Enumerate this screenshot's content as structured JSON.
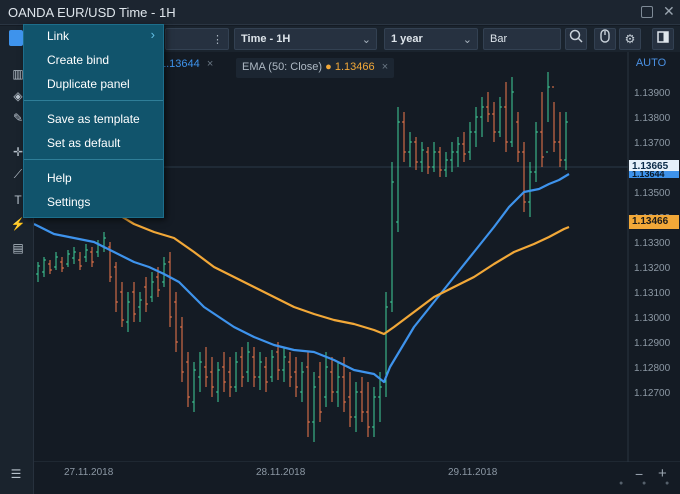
{
  "window": {
    "title": "OANDA EUR/USD Time - 1H",
    "restore_icon": "restore-icon",
    "close_icon": "close-icon"
  },
  "toolbar": {
    "interval": "Time - 1H",
    "range": "1 year",
    "chart_type": "Bar",
    "more_icon": "vertical-dots-icon",
    "chevron_icon": "chevron-down-icon",
    "icons": [
      "magnifier-icon",
      "mouse-icon",
      "gear-icon",
      "panel-toggle-icon"
    ]
  },
  "legend": {
    "indicator_partial": "1.13644",
    "close_x": "×",
    "ema_label": "EMA (50: Close)",
    "ema_dot": "●",
    "ema_value": "1.13466",
    "ema_close": "×"
  },
  "price_axis": {
    "auto_label": "AUTO",
    "ticks": [
      "1.13900",
      "1.13800",
      "1.13700",
      "1.13600",
      "1.13500",
      "1.13400",
      "1.13300",
      "1.13200",
      "1.13100",
      "1.13000",
      "1.12900",
      "1.12800",
      "1.12700"
    ],
    "current_price": "1.13665",
    "hidden_price": "1.13644",
    "ema_price": "1.13466"
  },
  "time_axis": {
    "dates": [
      "27.11.2018",
      "28.11.2018",
      "29.11.2018"
    ]
  },
  "menu": {
    "items": [
      {
        "label": "Link",
        "has_submenu": true
      },
      {
        "label": "Create bind"
      },
      {
        "label": "Duplicate panel"
      },
      {
        "label": "Save as template"
      },
      {
        "label": "Set as default"
      },
      {
        "label": "Help"
      },
      {
        "label": "Settings"
      }
    ],
    "submenu_arrow": "›"
  },
  "bottom": {
    "list_icon": "list-icon",
    "zoom_out": "−",
    "zoom_in": "+"
  },
  "colors": {
    "bull": "#3fcf9a",
    "bear": "#f2784b",
    "sma": "#3e93ec",
    "ema": "#f2a838",
    "menu_bg": "#11546c"
  },
  "chart_data": {
    "type": "bar",
    "symbol": "OANDA EUR/USD",
    "interval": "1H",
    "ylim": [
      1.1265,
      1.14
    ],
    "series": [
      {
        "name": "EMA (50: Close)",
        "last": 1.13466
      },
      {
        "name": "",
        "last": 1.13644
      }
    ],
    "last_price": 1.13665
  }
}
